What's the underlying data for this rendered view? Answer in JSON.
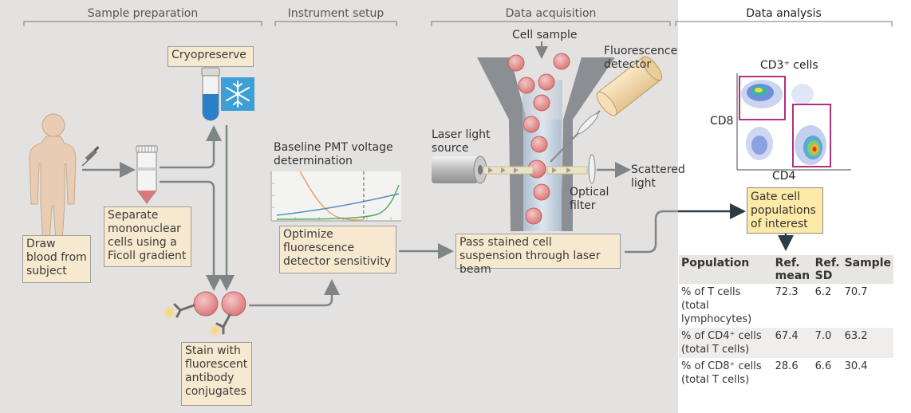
{
  "sections": {
    "sample_prep": "Sample preparation",
    "instrument_setup": "Instrument setup",
    "data_acquisition": "Data acquisition",
    "data_analysis": "Data analysis"
  },
  "steps": {
    "draw_blood": "Draw blood from subject",
    "separate": "Separate mononuclear cells using a Ficoll gradient",
    "cryopreserve": "Cryopreserve",
    "stain": "Stain with fluorescent antibody conjugates",
    "optimize": "Optimize fluorescence detector sensitivity",
    "pass_stained": "Pass stained cell suspension through laser beam",
    "gate": "Gate cell populations of interest"
  },
  "labels": {
    "baseline_pmt": "Baseline PMT voltage determination",
    "cell_sample": "Cell sample",
    "fluorescence_detector": "Fluorescence detector",
    "laser_light_source": "Laser light source",
    "optical_filter": "Optical filter",
    "scattered_light": "Scattered light",
    "cd3_cells": "CD3⁺ cells",
    "cd8": "CD8",
    "cd4": "CD4"
  },
  "table": {
    "headers": [
      "Population",
      "Ref. mean",
      "Ref. SD",
      "Sample"
    ],
    "rows": [
      [
        "% of T cells (total lymphocytes)",
        "72.3",
        "6.2",
        "70.7"
      ],
      [
        "% of CD4⁺ cells (total T cells)",
        "67.4",
        "7.0",
        "63.2"
      ],
      [
        "% of CD8⁺ cells (total T cells)",
        "28.6",
        "6.6",
        "30.4"
      ]
    ]
  },
  "colors": {
    "panel_bg": "#e4e2e0",
    "step_box": "#f7e9cf",
    "gate_box": "#fdeaa6",
    "gate_outline": "#b0307a",
    "arrow": "#7f8487"
  },
  "icons": [
    "person-icon",
    "syringe-icon",
    "tube-icon",
    "snowflake-icon",
    "cell-icon",
    "antibody-icon",
    "laser-icon",
    "detector-icon"
  ]
}
